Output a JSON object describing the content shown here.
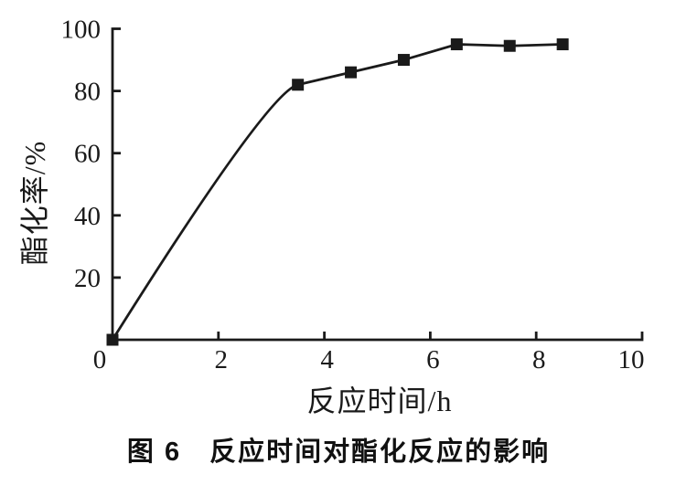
{
  "figure": {
    "caption": "图 6　反应时间对酯化反应的影响"
  },
  "chart_data": {
    "type": "line",
    "title": "",
    "xlabel": "反应时间/h",
    "ylabel": "酯化率/%",
    "xlim": [
      0,
      10
    ],
    "ylim": [
      0,
      100
    ],
    "x_ticks": [
      0,
      2,
      4,
      6,
      8,
      10
    ],
    "y_ticks": [
      20,
      40,
      60,
      80,
      100
    ],
    "grid": false,
    "legend": "none",
    "axis_color": "#1a1a1a",
    "background_color": "#ffffff",
    "series": [
      {
        "name": "酯化率",
        "marker": "filled-square",
        "color": "#1a1a1a",
        "x": [
          0,
          3.5,
          4.5,
          5.5,
          6.5,
          7.5,
          8.5
        ],
        "y": [
          0,
          82,
          86,
          90,
          95,
          94.5,
          95
        ]
      }
    ]
  }
}
